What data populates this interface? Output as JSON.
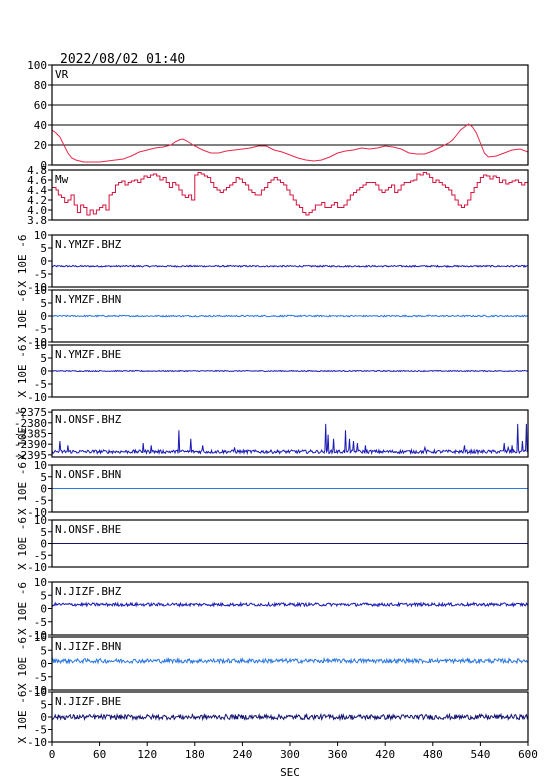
{
  "header": {
    "timestamp": "2022/08/02 01:40"
  },
  "xaxis": {
    "label": "SEC",
    "ticks": [
      "0",
      "60",
      "120",
      "180",
      "240",
      "300",
      "360",
      "420",
      "480",
      "540",
      "600"
    ]
  },
  "unit_label": "X 10E -6",
  "colors": {
    "vr": "#e8284a",
    "mw": "#d4143c",
    "dark_blue": "#1a1ab4",
    "light_blue": "#2a78e0",
    "navy": "#141470",
    "frame": "#000000"
  },
  "chart_data": {
    "type": "line",
    "xlim": [
      0,
      600
    ],
    "panels": [
      {
        "name": "VR",
        "ylim": [
          0,
          100
        ],
        "yticks": [
          "0",
          "20",
          "40",
          "60",
          "80",
          "100"
        ],
        "grid": true,
        "color": "#e8284a",
        "x": [
          0,
          5,
          10,
          15,
          20,
          25,
          30,
          40,
          50,
          60,
          70,
          80,
          90,
          100,
          110,
          120,
          130,
          140,
          150,
          155,
          160,
          165,
          170,
          180,
          190,
          200,
          210,
          220,
          230,
          240,
          250,
          260,
          270,
          280,
          290,
          300,
          310,
          320,
          330,
          340,
          350,
          360,
          370,
          380,
          390,
          400,
          410,
          420,
          430,
          440,
          450,
          460,
          470,
          480,
          490,
          500,
          505,
          510,
          515,
          520,
          525,
          530,
          535,
          540,
          545,
          550,
          560,
          570,
          580,
          590,
          600
        ],
        "values": [
          35,
          32,
          28,
          20,
          12,
          7,
          5,
          3,
          3,
          3,
          4,
          5,
          6,
          9,
          13,
          15,
          17,
          18,
          20,
          23,
          25,
          26,
          24,
          19,
          15,
          12,
          12,
          14,
          15,
          16,
          17,
          19,
          19,
          15,
          13,
          10,
          7,
          5,
          4,
          5,
          8,
          12,
          14,
          15,
          17,
          16,
          17,
          19,
          18,
          16,
          12,
          11,
          11,
          14,
          18,
          22,
          25,
          30,
          35,
          38,
          41,
          38,
          32,
          22,
          12,
          8,
          9,
          12,
          15,
          16,
          13
        ]
      },
      {
        "name": "Mw",
        "ylim": [
          3.8,
          4.8
        ],
        "yticks": [
          "3.8",
          "4.0",
          "4.2",
          "4.4",
          "4.6",
          "4.8"
        ],
        "grid": false,
        "color": "#d4143c",
        "x": [
          0,
          5,
          8,
          12,
          16,
          20,
          24,
          28,
          32,
          36,
          40,
          44,
          48,
          52,
          56,
          60,
          64,
          68,
          72,
          76,
          80,
          84,
          88,
          92,
          96,
          100,
          104,
          108,
          112,
          116,
          120,
          124,
          128,
          132,
          136,
          140,
          144,
          148,
          152,
          156,
          160,
          164,
          168,
          172,
          176,
          180,
          184,
          188,
          192,
          196,
          200,
          204,
          208,
          212,
          216,
          220,
          224,
          228,
          232,
          236,
          240,
          244,
          248,
          252,
          256,
          260,
          264,
          268,
          272,
          276,
          280,
          284,
          288,
          292,
          296,
          300,
          304,
          308,
          312,
          316,
          320,
          324,
          328,
          332,
          336,
          340,
          344,
          348,
          352,
          356,
          360,
          364,
          368,
          372,
          376,
          380,
          384,
          388,
          392,
          396,
          400,
          404,
          408,
          412,
          416,
          420,
          424,
          428,
          432,
          436,
          440,
          444,
          448,
          452,
          456,
          460,
          464,
          468,
          472,
          476,
          480,
          484,
          488,
          492,
          496,
          500,
          504,
          508,
          512,
          516,
          520,
          524,
          528,
          532,
          536,
          540,
          544,
          548,
          552,
          556,
          560,
          564,
          568,
          572,
          576,
          580,
          584,
          588,
          592,
          596,
          600
        ],
        "values": [
          4.45,
          4.4,
          4.3,
          4.25,
          4.15,
          4.2,
          4.3,
          4.1,
          3.95,
          4.1,
          4.05,
          3.9,
          4.0,
          3.92,
          4.0,
          4.05,
          4.1,
          4.0,
          4.3,
          4.35,
          4.5,
          4.55,
          4.58,
          4.5,
          4.55,
          4.58,
          4.6,
          4.55,
          4.62,
          4.68,
          4.65,
          4.7,
          4.72,
          4.68,
          4.6,
          4.65,
          4.55,
          4.45,
          4.55,
          4.5,
          4.4,
          4.3,
          4.25,
          4.3,
          4.2,
          4.7,
          4.75,
          4.72,
          4.68,
          4.65,
          4.55,
          4.45,
          4.4,
          4.35,
          4.4,
          4.45,
          4.5,
          4.55,
          4.65,
          4.62,
          4.55,
          4.5,
          4.4,
          4.35,
          4.3,
          4.3,
          4.4,
          4.45,
          4.55,
          4.6,
          4.65,
          4.6,
          4.55,
          4.5,
          4.4,
          4.3,
          4.2,
          4.1,
          4.05,
          3.95,
          3.9,
          3.95,
          4.0,
          4.1,
          4.1,
          4.15,
          4.05,
          4.05,
          4.1,
          4.15,
          4.05,
          4.05,
          4.1,
          4.2,
          4.3,
          4.35,
          4.4,
          4.45,
          4.5,
          4.55,
          4.55,
          4.55,
          4.5,
          4.4,
          4.35,
          4.4,
          4.45,
          4.5,
          4.35,
          4.4,
          4.5,
          4.55,
          4.55,
          4.58,
          4.6,
          4.72,
          4.7,
          4.75,
          4.72,
          4.65,
          4.55,
          4.6,
          4.55,
          4.5,
          4.45,
          4.4,
          4.3,
          4.2,
          4.1,
          4.05,
          4.1,
          4.2,
          4.35,
          4.45,
          4.55,
          4.65,
          4.7,
          4.68,
          4.62,
          4.68,
          4.65,
          4.55,
          4.6,
          4.52,
          4.55,
          4.58,
          4.6,
          4.55,
          4.5,
          4.55,
          4.52
        ]
      },
      {
        "name": "N.YMZF.BHZ",
        "ylim": [
          -10,
          10
        ],
        "yticks": [
          "-10",
          "-5",
          "0",
          "5",
          "10"
        ],
        "color": "#1a1ab4",
        "baseline": -2,
        "noise_amplitude": 0.3,
        "spikes": []
      },
      {
        "name": "N.YMZF.BHN",
        "ylim": [
          -10,
          10
        ],
        "yticks": [
          "-10",
          "-5",
          "0",
          "5",
          "10"
        ],
        "color": "#2a78e0",
        "baseline": 0,
        "noise_amplitude": 0.3,
        "spikes": []
      },
      {
        "name": "N.YMZF.BHE",
        "ylim": [
          -10,
          10
        ],
        "yticks": [
          "-10",
          "-5",
          "0",
          "5",
          "10"
        ],
        "color": "#1a1ab4",
        "baseline": 0,
        "noise_amplitude": 0.2,
        "spikes": []
      },
      {
        "name": "N.ONSF.BHZ",
        "ylim": [
          -2396,
          -2374
        ],
        "yticks": [
          "-2395",
          "-2390",
          "-2385",
          "-2380",
          "-2375"
        ],
        "color": "#1a1ab4",
        "baseline": -2393.5,
        "noise_amplitude": 0.8,
        "spikes": [
          [
            10,
            5
          ],
          [
            20,
            3
          ],
          [
            115,
            4
          ],
          [
            125,
            3
          ],
          [
            160,
            10
          ],
          [
            175,
            6
          ],
          [
            190,
            3
          ],
          [
            230,
            2
          ],
          [
            345,
            13
          ],
          [
            348,
            8
          ],
          [
            355,
            6
          ],
          [
            370,
            10
          ],
          [
            375,
            6
          ],
          [
            380,
            5
          ],
          [
            385,
            4
          ],
          [
            395,
            3
          ],
          [
            470,
            2
          ],
          [
            520,
            3
          ],
          [
            570,
            4
          ],
          [
            575,
            2
          ],
          [
            580,
            3
          ],
          [
            587,
            13
          ],
          [
            593,
            5
          ],
          [
            598,
            13
          ]
        ]
      },
      {
        "name": "N.ONSF.BHN",
        "ylim": [
          -10,
          10
        ],
        "yticks": [
          "-10",
          "-5",
          "0",
          "5",
          "10"
        ],
        "color": "#2a78e0",
        "baseline": 0,
        "noise_amplitude": 0.0,
        "spikes": []
      },
      {
        "name": "N.ONSF.BHE",
        "ylim": [
          -10,
          10
        ],
        "yticks": [
          "-10",
          "-5",
          "0",
          "5",
          "10"
        ],
        "color": "#141470",
        "baseline": 0,
        "noise_amplitude": 0.0,
        "spikes": []
      },
      {
        "name": "N.JIZF.BHZ",
        "ylim": [
          -10,
          10
        ],
        "yticks": [
          "-10",
          "-5",
          "0",
          "5",
          "10"
        ],
        "color": "#1a1ab4",
        "baseline": 1.5,
        "noise_amplitude": 0.6,
        "spikes": []
      },
      {
        "name": "N.JIZF.BHN",
        "ylim": [
          -10,
          10
        ],
        "yticks": [
          "-10",
          "-5",
          "0",
          "5",
          "10"
        ],
        "color": "#2a78e0",
        "baseline": 1,
        "noise_amplitude": 0.8,
        "spikes": []
      },
      {
        "name": "N.JIZF.BHE",
        "ylim": [
          -10,
          10
        ],
        "yticks": [
          "-10",
          "-5",
          "0",
          "5",
          "10"
        ],
        "color": "#141470",
        "baseline": 0,
        "noise_amplitude": 1.0,
        "spikes": []
      }
    ]
  }
}
